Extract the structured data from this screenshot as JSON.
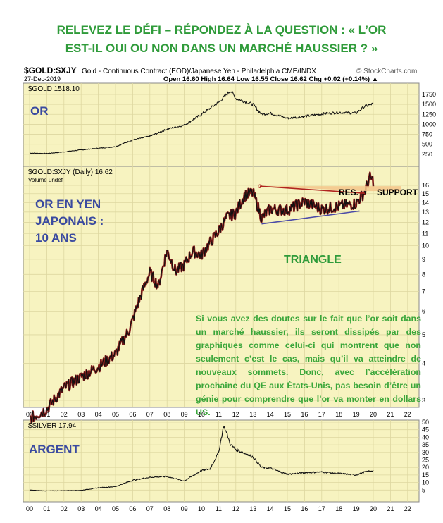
{
  "headline": {
    "line1": "RELEVEZ LE DÉFI – RÉPONDEZ À LA QUESTION : « L’OR",
    "line2": "EST-IL OUI OU NON DANS UN MARCHÉ HAUSSIER ? »"
  },
  "chart_header": {
    "symbol": "$GOLD:$XJY",
    "description": "Gold - Continuous Contract (EOD)/Japanese Yen - Philadelphia CME/INDX",
    "watermark": "© StockCharts.com",
    "date": "27-Dec-2019",
    "quote": "Open 16.60   High 16.64   Low 16.55   Close 16.62   Chg +0.02 (+0.14%) ▲"
  },
  "panels": {
    "gold": {
      "legend": "$GOLD 1518.10",
      "label": "OR"
    },
    "ratio": {
      "legend": "$GOLD:$XJY (Daily) 16.62",
      "legend2": "Volume undef",
      "label_lines": [
        "OR   EN   YEN",
        "JAPONAIS   :",
        "10 ANS"
      ]
    },
    "silver": {
      "legend": "$SILVER 17.94",
      "label": "ARGENT"
    }
  },
  "annotations": {
    "resistance": "RES.",
    "support": "SUPPORT",
    "triangle": "TRIANGLE",
    "note": "Si vous avez des doutes sur le fait que l’or soit dans un marché haussier, ils seront dissipés par des graphiques comme celui-ci qui montrent que non seulement c’est le cas, mais qu’il va atteindre de nouveaux sommets. Donc, avec l’accélération prochaine du QE aux États-Unis, pas besoin d’être un génie pour comprendre que l’or va monter en dollars US."
  },
  "colors": {
    "panel_bg": "#f7f3c0",
    "headline": "#2f9b3a",
    "label_blue": "#3a4aa0",
    "note_green": "#3aa63a",
    "resistance_line": "#b0241f",
    "support_band": "#f3c48a",
    "triangle_line": "#4a4aa8"
  },
  "chart_data": [
    {
      "type": "line",
      "series": [
        {
          "name": "$GOLD",
          "x": [
            2000,
            2001,
            2002,
            2003,
            2004,
            2005,
            2006,
            2007,
            2008,
            2009,
            2010,
            2011,
            2011.7,
            2012,
            2013,
            2013.5,
            2014,
            2015,
            2016,
            2017,
            2018,
            2019,
            2019.5,
            2020
          ],
          "values": [
            280,
            270,
            310,
            360,
            400,
            440,
            610,
            700,
            880,
            980,
            1250,
            1550,
            1850,
            1650,
            1500,
            1250,
            1280,
            1150,
            1200,
            1260,
            1300,
            1280,
            1450,
            1518
          ]
        }
      ],
      "ylabel": "",
      "ylim": [
        0,
        1850
      ],
      "yticks": [
        1750,
        1500,
        1250,
        1000,
        750,
        500,
        250
      ]
    },
    {
      "type": "line",
      "series": [
        {
          "name": "$GOLD:$XJY",
          "x": [
            2000,
            2001,
            2002,
            2003,
            2004,
            2005,
            2005.8,
            2006,
            2007,
            2007.5,
            2008,
            2008.5,
            2009,
            2009.5,
            2010,
            2011,
            2011.5,
            2012,
            2012.5,
            2013,
            2013.5,
            2014,
            2015,
            2016,
            2017,
            2018,
            2019,
            2019.5,
            2019.8,
            2020
          ],
          "values": [
            2.6,
            2.8,
            3.3,
            3.6,
            3.9,
            4.3,
            5.2,
            5.6,
            8.1,
            7.3,
            9.6,
            8.2,
            8.6,
            9.6,
            9.3,
            11.2,
            12.5,
            12.9,
            14.8,
            15.1,
            12.4,
            13.3,
            13.2,
            14.1,
            13.3,
            13.6,
            13.9,
            15.2,
            17.0,
            16.6
          ]
        }
      ],
      "ylim": [
        2.6,
        17.2
      ],
      "yticks": [
        16,
        15,
        14,
        13,
        12,
        11,
        10,
        9,
        8,
        7,
        6,
        5,
        4,
        3
      ]
    },
    {
      "type": "line",
      "series": [
        {
          "name": "$SILVER",
          "x": [
            2000,
            2001,
            2002,
            2003,
            2004,
            2005,
            2006,
            2007,
            2008,
            2009,
            2010,
            2010.5,
            2011,
            2011.3,
            2011.7,
            2012,
            2013,
            2013.5,
            2014,
            2015,
            2016,
            2017,
            2018,
            2019,
            2019.5,
            2020
          ],
          "values": [
            5.0,
            4.4,
            4.6,
            4.8,
            6.5,
            7.3,
            11.5,
            13.5,
            14.0,
            11.0,
            18.0,
            19.0,
            30.0,
            48.0,
            35.0,
            32.0,
            27.0,
            20.0,
            19.5,
            15.5,
            16.5,
            17.0,
            16.0,
            15.0,
            17.0,
            17.94
          ]
        }
      ],
      "ylim": [
        0,
        50
      ],
      "yticks": [
        50,
        45,
        40,
        35,
        30,
        25,
        20,
        15,
        10,
        5
      ]
    }
  ],
  "x_axis": {
    "labels": [
      "00",
      "01",
      "02",
      "03",
      "04",
      "05",
      "06",
      "07",
      "08",
      "09",
      "10",
      "11",
      "12",
      "13",
      "14",
      "15",
      "16",
      "17",
      "18",
      "19",
      "20",
      "21",
      "22"
    ]
  }
}
